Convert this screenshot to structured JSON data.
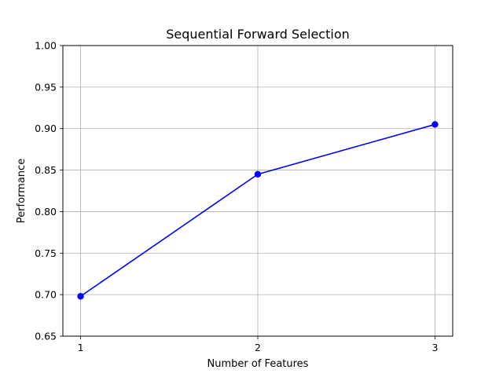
{
  "chart_data": {
    "type": "line",
    "title": "Sequential Forward Selection",
    "xlabel": "Number of Features",
    "ylabel": "Performance",
    "x": [
      1,
      2,
      3
    ],
    "xticks": [
      "1",
      "2",
      "3"
    ],
    "xlim": [
      0.9,
      3.1
    ],
    "ylim": [
      0.65,
      1.0
    ],
    "yticks": [
      "0.65",
      "0.70",
      "0.75",
      "0.80",
      "0.85",
      "0.90",
      "0.95",
      "1.00"
    ],
    "grid": true,
    "series": [
      {
        "values": [
          0.698,
          0.845,
          0.905
        ],
        "color": "#0000ff",
        "marker": "circle"
      }
    ]
  }
}
